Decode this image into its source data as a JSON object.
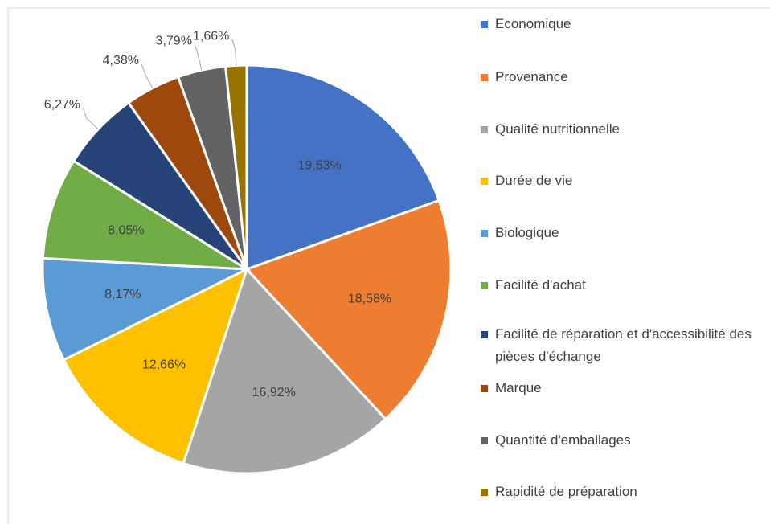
{
  "chart_data": {
    "type": "pie",
    "categories": [
      "Economique",
      "Provenance",
      "Qualité nutritionnelle",
      "Durée de vie",
      "Biologique",
      "Facilité d'achat",
      "Facilité de réparation et d'accessibilité des pièces d'échange",
      "Marque",
      "Quantité d'emballages",
      "Rapidité de préparation"
    ],
    "values": [
      19.53,
      18.58,
      16.92,
      12.66,
      8.17,
      8.05,
      6.27,
      4.38,
      3.79,
      1.66
    ],
    "value_labels": [
      "19,53%",
      "18,58%",
      "16,92%",
      "12,66%",
      "8,17%",
      "8,05%",
      "6,27%",
      "4,38%",
      "3,79%",
      "1,66%"
    ],
    "colors": [
      "#4472c4",
      "#ed7d31",
      "#a5a5a5",
      "#ffc000",
      "#5b9bd5",
      "#70ad47",
      "#264478",
      "#9e480e",
      "#636363",
      "#997300"
    ],
    "legend": "right"
  }
}
